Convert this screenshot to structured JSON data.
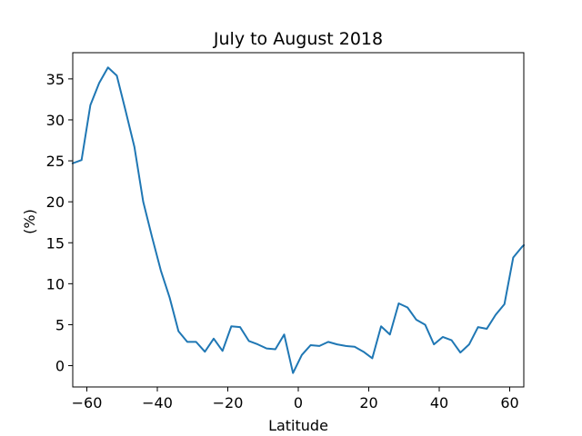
{
  "chart_data": {
    "type": "line",
    "title": "July to August 2018",
    "xlabel": "Latitude",
    "ylabel": "(%)",
    "xlim": [
      -64,
      64
    ],
    "ylim": [
      -2.6,
      38.2
    ],
    "x_ticks": [
      -60,
      -40,
      -20,
      0,
      20,
      40,
      60
    ],
    "x_tick_labels": [
      "−60",
      "−40",
      "−20",
      "0",
      "20",
      "40",
      "60"
    ],
    "y_ticks": [
      0,
      5,
      10,
      15,
      20,
      25,
      30,
      35
    ],
    "y_tick_labels": [
      "0",
      "5",
      "10",
      "15",
      "20",
      "25",
      "30",
      "35"
    ],
    "grid": false,
    "line_color": "#1f77b4",
    "series": [
      {
        "x": [
          -64,
          -61.5,
          -59,
          -56.5,
          -54,
          -51.5,
          -49,
          -46.5,
          -44,
          -41.5,
          -39,
          -36.5,
          -34,
          -31.5,
          -29,
          -26.5,
          -24,
          -21.5,
          -19,
          -16.5,
          -14,
          -11.5,
          -9,
          -6.5,
          -4,
          -1.5,
          1,
          3.5,
          6,
          8.5,
          11,
          13.5,
          16,
          18.5,
          21,
          23.5,
          26,
          28.5,
          31,
          33.5,
          36,
          38.5,
          41,
          43.5,
          46,
          48.5,
          51,
          53.5,
          56,
          58.5,
          61,
          63.5,
          64
        ],
        "y": [
          24.7,
          25.1,
          31.8,
          34.5,
          36.4,
          35.4,
          31.1,
          26.7,
          20.0,
          15.7,
          11.6,
          8.3,
          4.2,
          2.9,
          2.9,
          1.7,
          3.3,
          1.8,
          4.8,
          4.7,
          3.0,
          2.6,
          2.1,
          2.0,
          3.8,
          -0.9,
          1.3,
          2.5,
          2.4,
          2.9,
          2.6,
          2.4,
          2.3,
          1.7,
          0.9,
          4.8,
          3.8,
          7.6,
          7.1,
          5.6,
          5.0,
          2.6,
          3.5,
          3.1,
          1.6,
          2.6,
          4.7,
          4.5,
          6.2,
          7.5,
          13.2,
          14.5,
          14.7
        ]
      }
    ]
  }
}
